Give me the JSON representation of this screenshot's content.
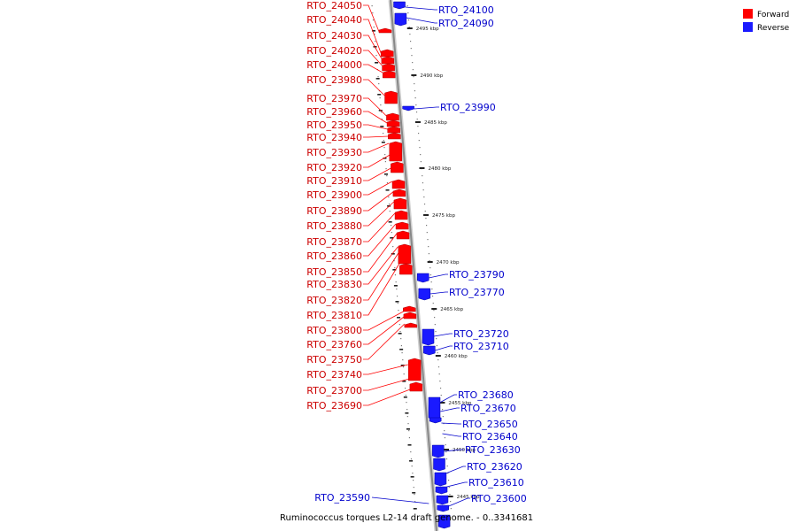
{
  "caption": "Ruminococcus torques L2-14 draft genome. - 0..3341681",
  "colors": {
    "forward": "#ff0000",
    "reverse": "#1a1aff",
    "backbone": "#888888",
    "leader_forward": "#ff0000",
    "leader_reverse": "#0000cc"
  },
  "legend": [
    {
      "label": "Forward",
      "strand": "forward"
    },
    {
      "label": "Reverse",
      "strand": "reverse"
    }
  ],
  "ticks": [
    "2495 kbp",
    "2490 kbp",
    "2485 kbp",
    "2480 kbp",
    "2475 kbp",
    "2470 kbp",
    "2465 kbp",
    "2460 kbp",
    "2455 kbp",
    "2450 kbp",
    "2445 kbp"
  ],
  "forward_labels": [
    "RTO_24050",
    "RTO_24040",
    "RTO_24030",
    "RTO_24020",
    "RTO_24000",
    "RTO_23980",
    "RTO_23970",
    "RTO_23960",
    "RTO_23950",
    "RTO_23940",
    "RTO_23930",
    "RTO_23920",
    "RTO_23910",
    "RTO_23900",
    "RTO_23890",
    "RTO_23880",
    "RTO_23870",
    "RTO_23860",
    "RTO_23850",
    "RTO_23830",
    "RTO_23820",
    "RTO_23810",
    "RTO_23800",
    "RTO_23760",
    "RTO_23750",
    "RTO_23740",
    "RTO_23700",
    "RTO_23690"
  ],
  "reverse_labels": [
    "RTO_24100",
    "RTO_24090",
    "RTO_23990",
    "RTO_23790",
    "RTO_23770",
    "RTO_23720",
    "RTO_23710",
    "RTO_23680",
    "RTO_23670",
    "RTO_23650",
    "RTO_23640",
    "RTO_23630",
    "RTO_23620",
    "RTO_23610",
    "RTO_23600",
    "RTO_23590"
  ]
}
